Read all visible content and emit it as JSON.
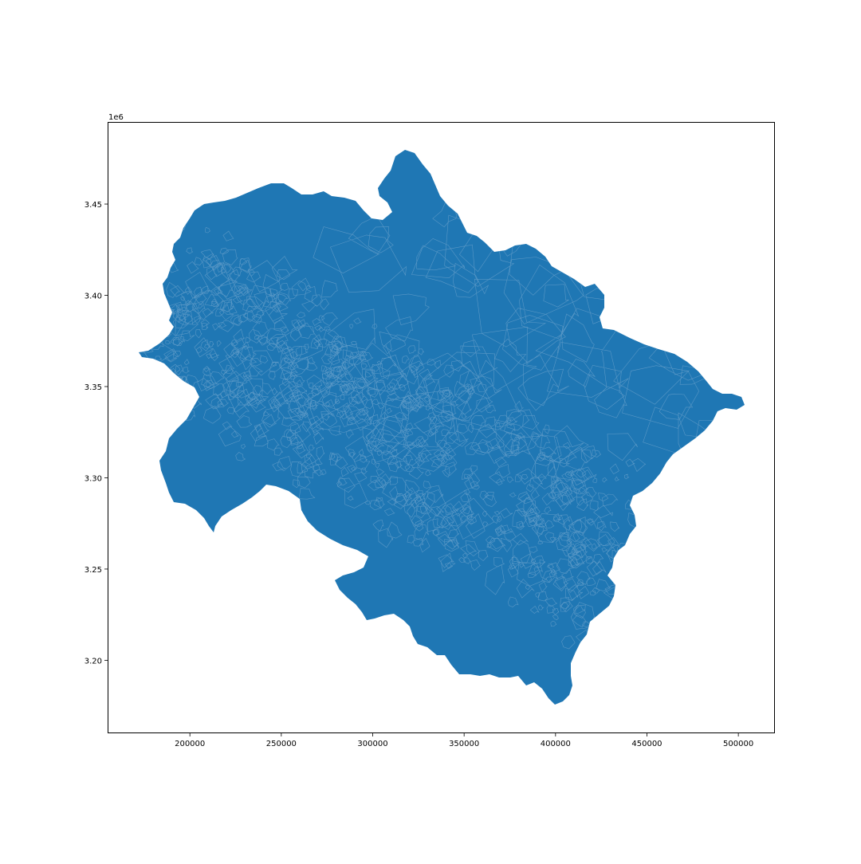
{
  "chart_data": {
    "type": "choropleth-map",
    "x_ticks": [
      "200000",
      "250000",
      "300000",
      "350000",
      "400000",
      "450000",
      "500000"
    ],
    "y_ticks": [
      "3.20",
      "3.25",
      "3.30",
      "3.35",
      "3.40",
      "3.45"
    ],
    "x_tick_values": [
      200000,
      250000,
      300000,
      350000,
      400000,
      450000,
      500000
    ],
    "y_tick_values": [
      3.2,
      3.25,
      3.3,
      3.35,
      3.4,
      3.45
    ],
    "y_offset_label": "1e6",
    "xlim": [
      155000,
      520000
    ],
    "ylim": [
      3.16,
      3.495
    ],
    "fill_color": "#1f77b4",
    "edge_color": "#6ea3cc",
    "grid": false,
    "legend": "none"
  }
}
